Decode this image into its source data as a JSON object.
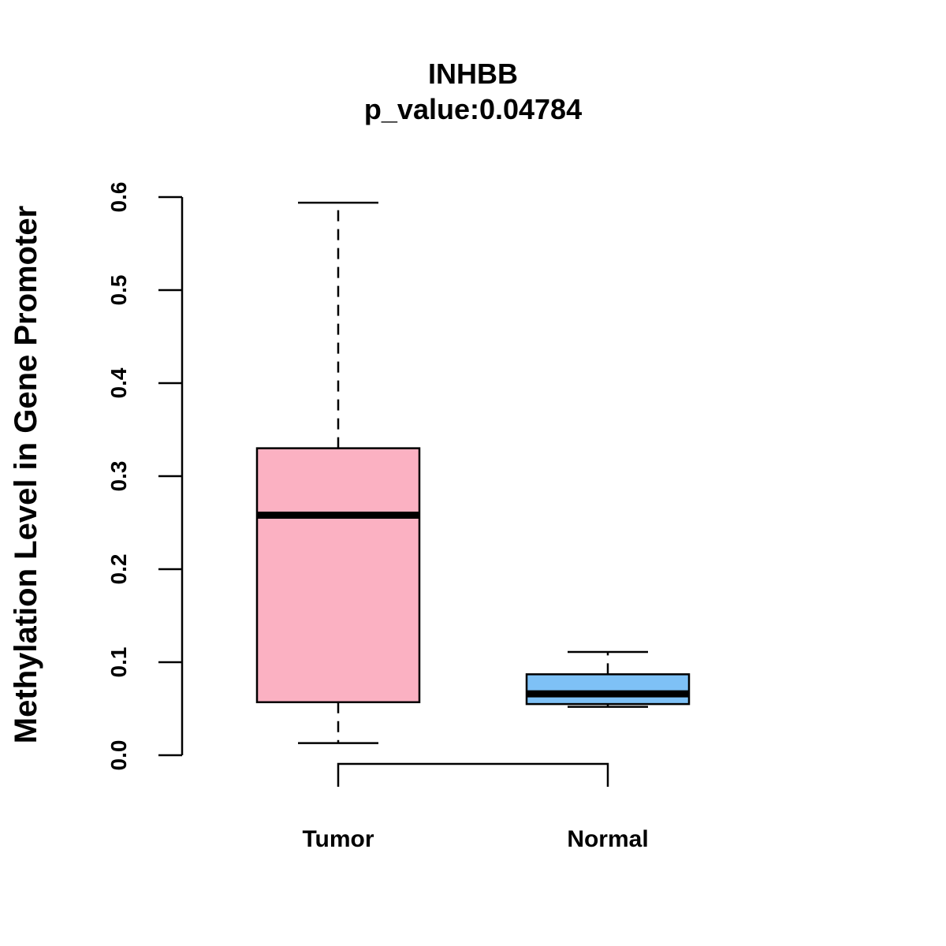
{
  "chart_data": {
    "type": "boxplot",
    "title": "INHBB",
    "subtitle": "p_value:0.04784",
    "xlabel": "",
    "ylabel": "Methylation Level in Gene Promoter",
    "ylim": [
      0,
      0.6
    ],
    "yticks": [
      "0.0",
      "0.1",
      "0.2",
      "0.3",
      "0.4",
      "0.5",
      "0.6"
    ],
    "categories": [
      "Tumor",
      "Normal"
    ],
    "boxes": [
      {
        "name": "Tumor",
        "whisker_low": 0.013,
        "q1": 0.057,
        "median": 0.258,
        "q3": 0.33,
        "whisker_high": 0.594,
        "color": "#FBB1C2"
      },
      {
        "name": "Normal",
        "whisker_low": 0.052,
        "q1": 0.055,
        "median": 0.066,
        "q3": 0.087,
        "whisker_high": 0.111,
        "color": "#7EC1F6"
      }
    ],
    "significance_bracket": {
      "from": "Tumor",
      "to": "Normal"
    }
  }
}
